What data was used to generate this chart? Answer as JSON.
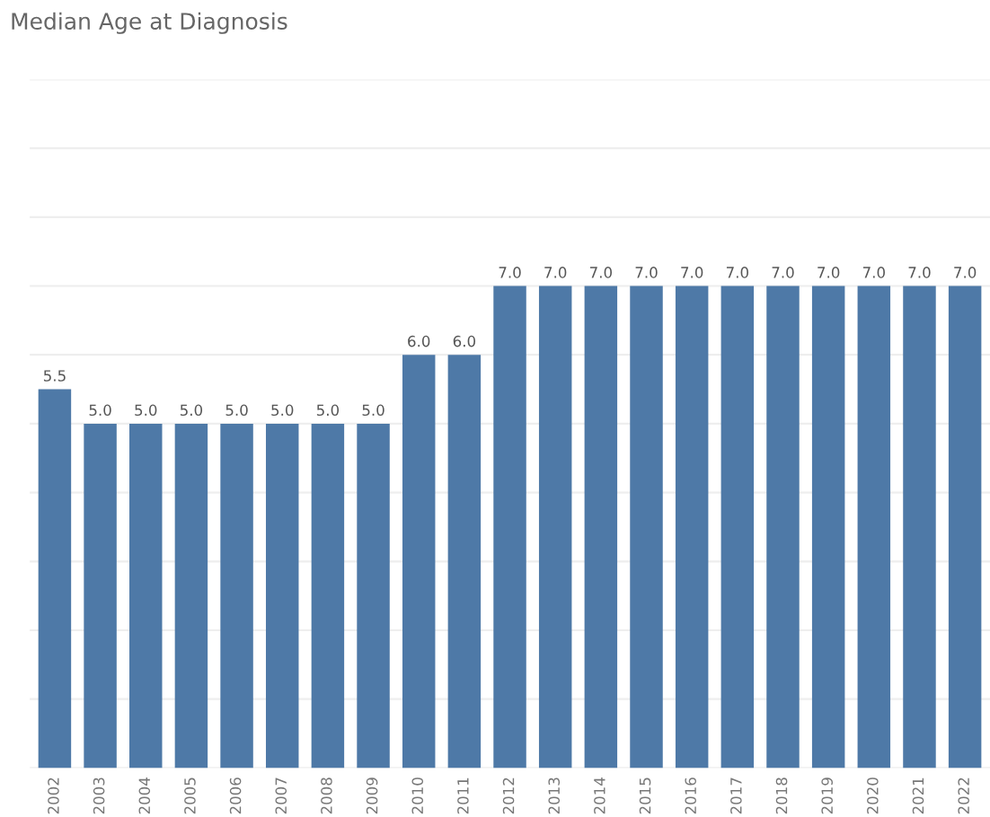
{
  "chart_data": {
    "type": "bar",
    "title": "Median Age at Diagnosis",
    "categories": [
      "2002",
      "2003",
      "2004",
      "2005",
      "2006",
      "2007",
      "2008",
      "2009",
      "2010",
      "2011",
      "2012",
      "2013",
      "2014",
      "2015",
      "2016",
      "2017",
      "2018",
      "2019",
      "2020",
      "2021",
      "2022"
    ],
    "values": [
      5.5,
      5.0,
      5.0,
      5.0,
      5.0,
      5.0,
      5.0,
      5.0,
      6.0,
      6.0,
      7.0,
      7.0,
      7.0,
      7.0,
      7.0,
      7.0,
      7.0,
      7.0,
      7.0,
      7.0,
      7.0
    ],
    "color": "#4e79a7",
    "value_labels": [
      "5.5",
      "5.0",
      "5.0",
      "5.0",
      "5.0",
      "5.0",
      "5.0",
      "5.0",
      "6.0",
      "6.0",
      "7.0",
      "7.0",
      "7.0",
      "7.0",
      "7.0",
      "7.0",
      "7.0",
      "7.0",
      "7.0",
      "7.0",
      "7.0"
    ],
    "ylim": [
      0,
      10
    ],
    "yticks": [
      {
        "value": 0,
        "label": null
      },
      {
        "value": 1,
        "label": null
      },
      {
        "value": 2,
        "label": null
      },
      {
        "value": 3,
        "label": null
      },
      {
        "value": 4,
        "label": null
      },
      {
        "value": 5,
        "label": null
      },
      {
        "value": 6,
        "label": null
      },
      {
        "value": 7,
        "label": null
      },
      {
        "value": 8,
        "label": null
      },
      {
        "value": 9,
        "label": null
      },
      {
        "value": 10,
        "label": null
      }
    ],
    "grid": "y",
    "tick_labels": "x"
  }
}
